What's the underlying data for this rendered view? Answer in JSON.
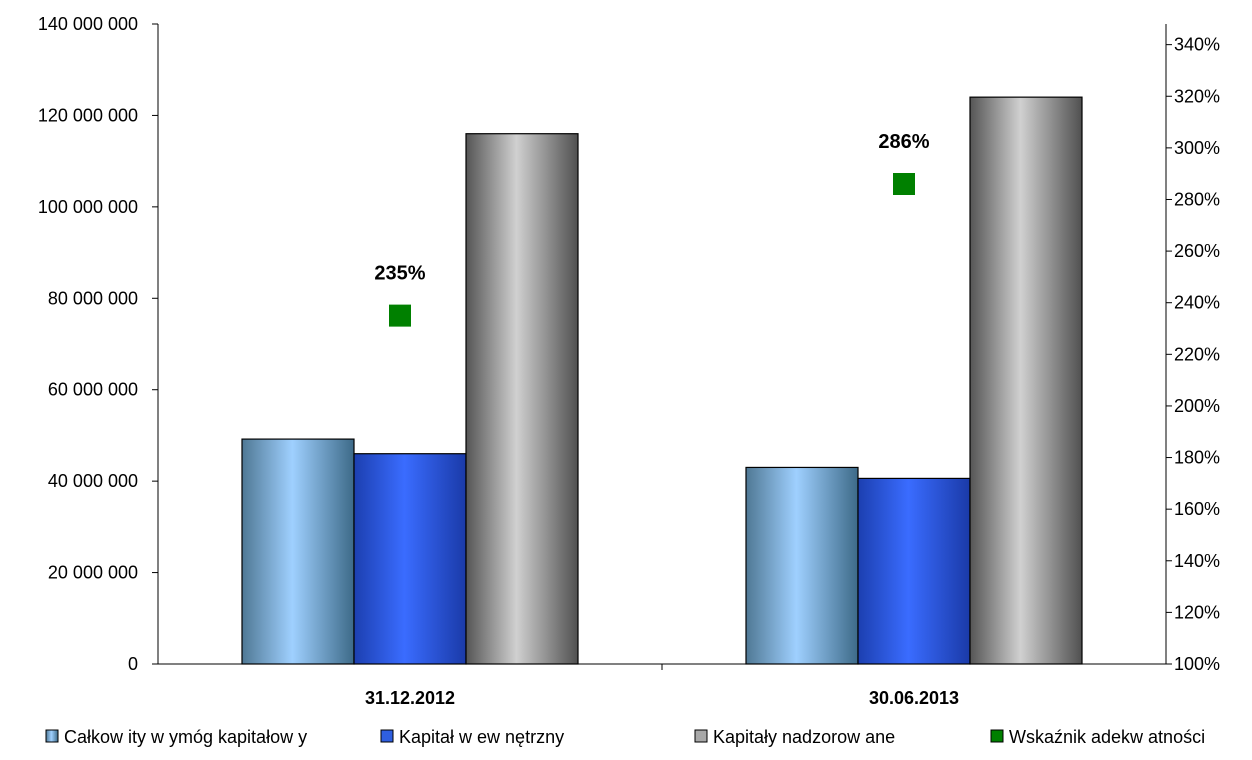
{
  "chart_data": {
    "type": "bar",
    "categories": [
      "31.12.2012",
      "30.06.2013"
    ],
    "series": [
      {
        "name": "Całkow ity w ymóg kapitałow y",
        "axis": "left",
        "kind": "bar",
        "values": [
          49200000,
          43000000
        ],
        "color": "#8fbfe8"
      },
      {
        "name": "Kapitał w ew nętrzny",
        "axis": "left",
        "kind": "bar",
        "values": [
          46000000,
          40600000
        ],
        "color": "#2f5fe0"
      },
      {
        "name": "Kapitały nadzorow ane",
        "axis": "left",
        "kind": "bar",
        "values": [
          116000000,
          124000000
        ],
        "color": "#a8a8a8"
      },
      {
        "name": "Wskaźnik adekw atności",
        "axis": "right",
        "kind": "point",
        "values": [
          235,
          286
        ],
        "labels": [
          "235%",
          "286%"
        ],
        "color": "#008000"
      }
    ],
    "left_axis": {
      "min": 0,
      "max": 140000000,
      "ticks": [
        0,
        20000000,
        40000000,
        60000000,
        80000000,
        100000000,
        120000000,
        140000000
      ],
      "tick_labels": [
        "0",
        "20 000 000",
        "40 000 000",
        "60 000 000",
        "80 000 000",
        "100 000 000",
        "120 000 000",
        "140 000 000"
      ]
    },
    "right_axis": {
      "min": 100,
      "max": 348,
      "ticks": [
        100,
        120,
        140,
        160,
        180,
        200,
        220,
        240,
        260,
        280,
        300,
        320,
        340
      ],
      "tick_labels": [
        "100%",
        "120%",
        "140%",
        "160%",
        "180%",
        "200%",
        "220%",
        "240%",
        "260%",
        "280%",
        "300%",
        "320%",
        "340%"
      ]
    },
    "grid": false,
    "legend_position": "bottom"
  }
}
